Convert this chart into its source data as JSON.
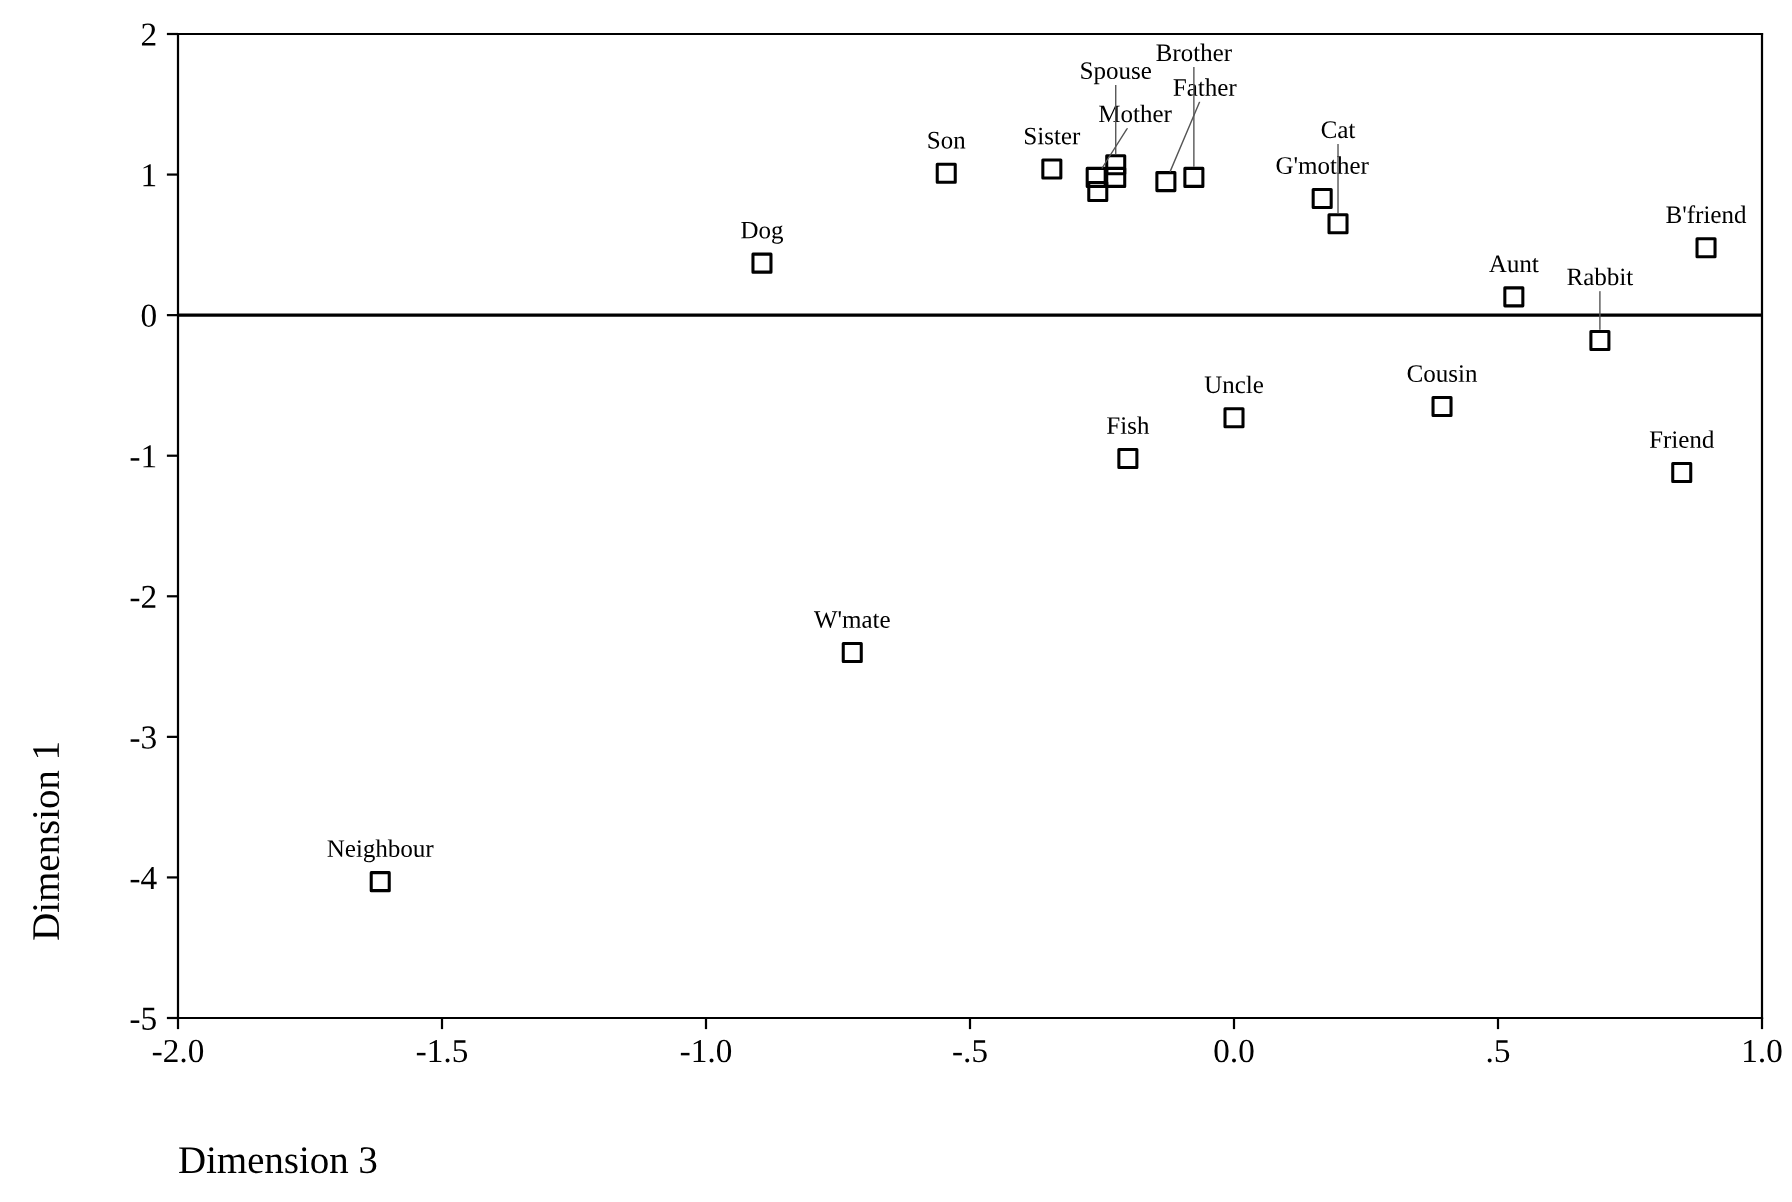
{
  "chart_data": {
    "type": "scatter",
    "xlabel": "Dimension 3",
    "ylabel": "Dimension 1",
    "x": [
      -1.617,
      -0.723,
      -0.894,
      -0.545,
      -0.345,
      -0.261,
      -0.258,
      -0.224,
      -0.224,
      -0.129,
      -0.076,
      0.167,
      0.197,
      0.894,
      0.53,
      0.693,
      0.0,
      0.394,
      -0.201,
      0.848
    ],
    "series": [
      {
        "color": "#000000",
        "values": [
          -4.03,
          -2.4,
          0.37,
          1.01,
          1.04,
          0.98,
          0.88,
          1.07,
          0.98,
          0.95,
          0.98,
          0.83,
          0.65,
          0.48,
          0.13,
          -0.18,
          -0.73,
          -0.65,
          -1.02,
          -1.12
        ]
      }
    ],
    "marker": "square",
    "grid": false,
    "legend": false,
    "xlim": [
      -2.0,
      1.0
    ],
    "xticks": [
      {
        "value": -2.0,
        "label": "-2.0"
      },
      {
        "value": -1.5,
        "label": "-1.5"
      },
      {
        "value": -1.0,
        "label": "-1.0"
      },
      {
        "value": -0.5,
        "label": "-.5"
      },
      {
        "value": 0.0,
        "label": "0.0"
      },
      {
        "value": 0.5,
        "label": ".5"
      },
      {
        "value": 1.0,
        "label": "1.0"
      }
    ],
    "ylim": [
      -5,
      2
    ],
    "yticks": [
      -5,
      -4,
      -3,
      -2,
      -1,
      0,
      1,
      2
    ],
    "ref_lines": [
      {
        "axis": "y",
        "value": 0,
        "color": "#000000"
      }
    ],
    "annotations": [
      {
        "text": "Neighbour",
        "x": -1.617,
        "y": -4.03
      },
      {
        "text": "W'mate",
        "x": -0.723,
        "y": -2.4
      },
      {
        "text": "Dog",
        "x": -0.894,
        "y": 0.37
      },
      {
        "text": "Son",
        "x": -0.545,
        "y": 1.01
      },
      {
        "text": "Sister",
        "x": -0.345,
        "y": 1.04
      },
      {
        "text": "Mother",
        "x": -0.261,
        "y": 0.98
      },
      {
        "text": "Spouse",
        "x": -0.224,
        "y": 1.07
      },
      {
        "text": "Father",
        "x": -0.129,
        "y": 0.95
      },
      {
        "text": "Brother",
        "x": -0.076,
        "y": 0.98
      },
      {
        "text": "G'mother",
        "x": 0.167,
        "y": 0.83
      },
      {
        "text": "Cat",
        "x": 0.197,
        "y": 0.65
      },
      {
        "text": "B'friend",
        "x": 0.894,
        "y": 0.48
      },
      {
        "text": "Aunt",
        "x": 0.53,
        "y": 0.13
      },
      {
        "text": "Rabbit",
        "x": 0.693,
        "y": -0.18
      },
      {
        "text": "Uncle",
        "x": 0.0,
        "y": -0.73
      },
      {
        "text": "Cousin",
        "x": 0.394,
        "y": -0.65
      },
      {
        "text": "Fish",
        "x": -0.201,
        "y": -1.02
      },
      {
        "text": "Friend",
        "x": 0.848,
        "y": -1.12
      }
    ]
  }
}
